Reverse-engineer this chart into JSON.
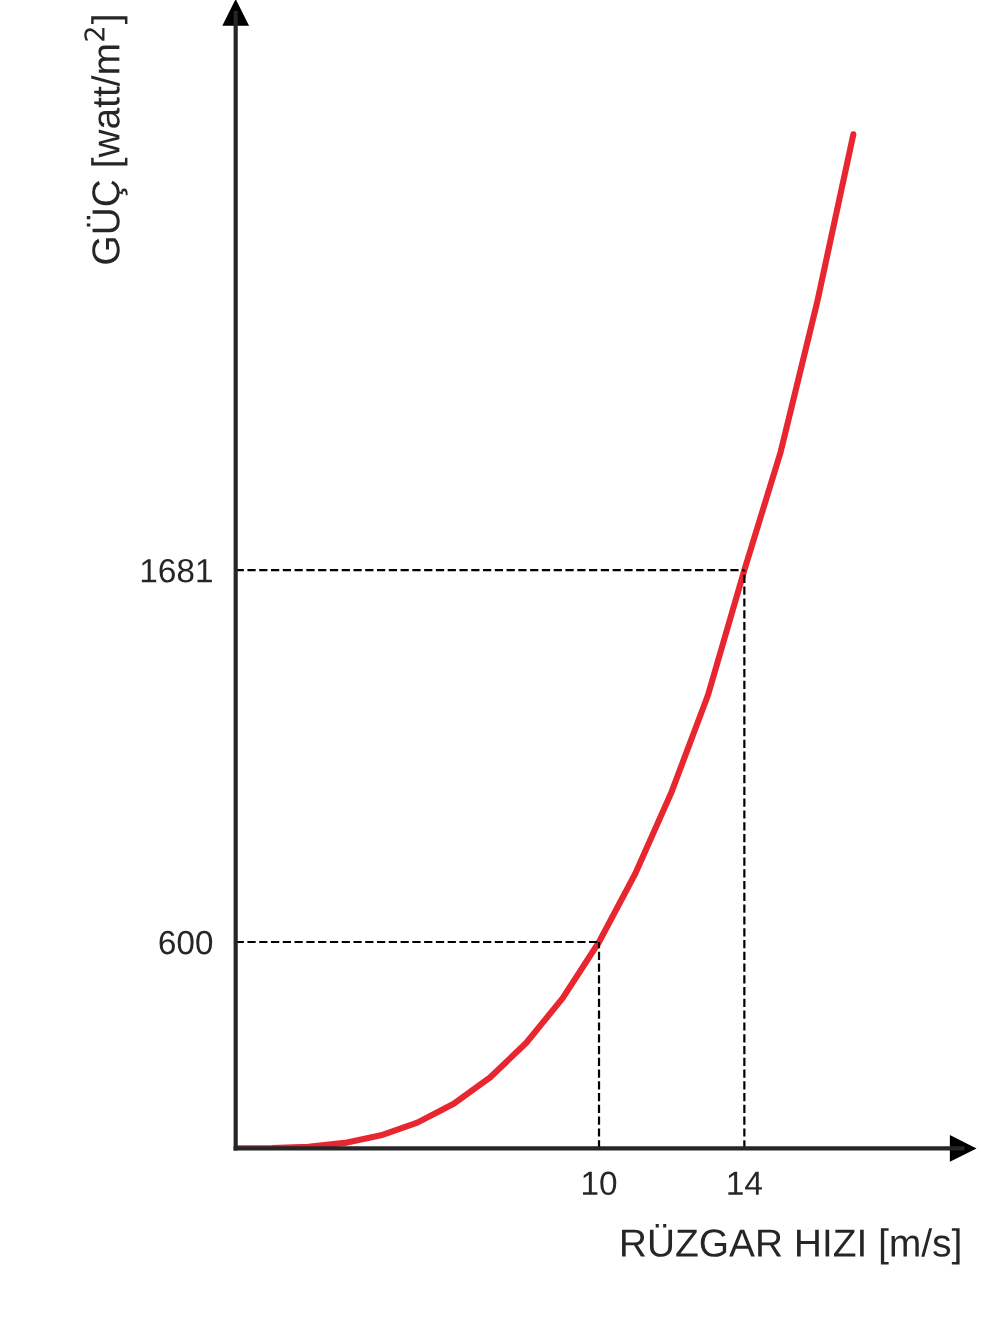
{
  "chart_data": {
    "type": "line",
    "xlabel": "RÜZGAR HIZI [m/s]",
    "ylabel": "GÜÇ [watt/m$^{2}$]",
    "x": [
      0,
      1,
      2,
      3,
      4,
      5,
      6,
      7,
      8,
      9,
      10,
      11,
      12,
      13,
      14,
      15,
      16,
      17
    ],
    "series": [
      {
        "color": "#e8262f",
        "values": [
          0,
          1,
          5,
          16,
          38,
          75,
          130,
          206,
          307,
          437,
          600,
          799,
          1037,
          1318,
          1681,
          2025,
          2458,
          2948
        ]
      }
    ],
    "xlim": [
      0,
      20
    ],
    "ylim": [
      0,
      3300
    ],
    "xticks": [
      10,
      14
    ],
    "yticks": [
      600,
      1681
    ],
    "ref_lines": [
      {
        "axis": "x",
        "value": 10,
        "line_style": "dashed",
        "color": "#000000"
      },
      {
        "axis": "x",
        "value": 14,
        "line_style": "dashed",
        "color": "#000000"
      },
      {
        "axis": "y",
        "value": 600,
        "line_style": "dashed",
        "color": "#000000"
      },
      {
        "axis": "y",
        "value": 1681,
        "line_style": "dashed",
        "color": "#000000"
      }
    ],
    "grid": false,
    "legend": false
  }
}
